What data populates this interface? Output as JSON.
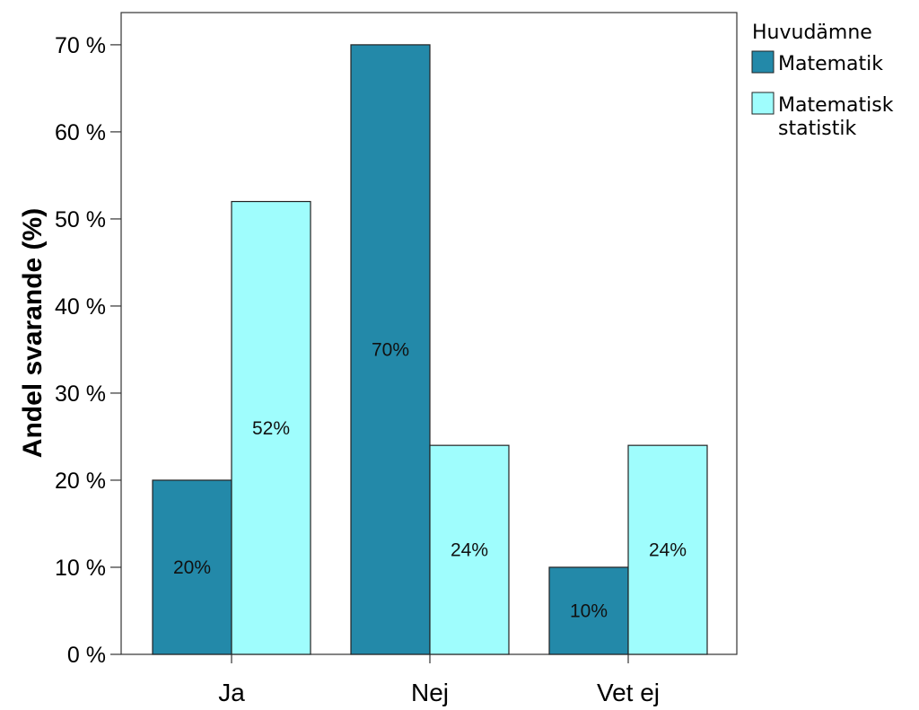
{
  "chart_data": {
    "type": "bar",
    "categories": [
      "Ja",
      "Nej",
      "Vet ej"
    ],
    "series": [
      {
        "name": "Matematik",
        "values": [
          20,
          70,
          10
        ],
        "labels": [
          "20%",
          "70%",
          "10%"
        ],
        "color": "#2389a9"
      },
      {
        "name": "Matematisk statistik",
        "name_lines": [
          "Matematisk",
          "statistik"
        ],
        "values": [
          52,
          24,
          24
        ],
        "labels": [
          "52%",
          "24%",
          "24%"
        ],
        "color": "#9ffdfd"
      }
    ],
    "title": "",
    "xlabel": "",
    "ylabel": "Andel svarande (%)",
    "ylim": [
      0,
      73.7
    ],
    "yticks": [
      0,
      10,
      20,
      30,
      40,
      50,
      60,
      70
    ],
    "ytick_labels": [
      "0 %",
      "10 %",
      "20 %",
      "30 %",
      "40 %",
      "50 %",
      "60 %",
      "70 %"
    ],
    "legend_title": "Huvudämne",
    "legend_position": "right",
    "grid": false
  }
}
